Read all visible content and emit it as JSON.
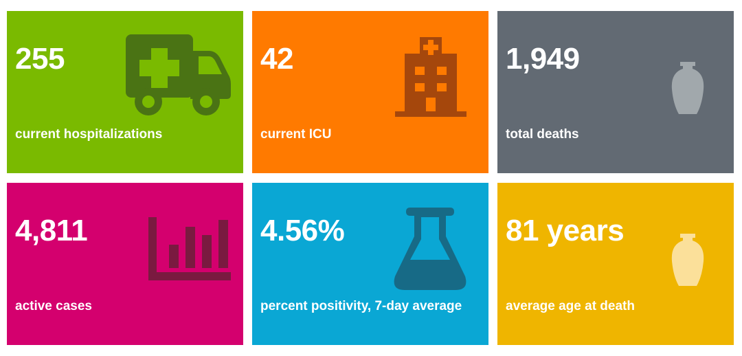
{
  "colors": {
    "hospitalizations": "#7aba00",
    "icu": "#ff7a00",
    "deaths": "#626a73",
    "active_cases": "#d4006e",
    "positivity": "#0aa7d4",
    "average_age": "#efb500"
  },
  "tiles": [
    {
      "value": "255",
      "label": "current hospitalizations",
      "icon": "ambulance-icon"
    },
    {
      "value": "42",
      "label": "current ICU",
      "icon": "hospital-building-icon"
    },
    {
      "value": "1,949",
      "label": "total deaths",
      "icon": "urn-icon"
    },
    {
      "value": "4,811",
      "label": "active cases",
      "icon": "bar-chart-icon"
    },
    {
      "value": "4.56%",
      "label": "percent positivity, 7-day average",
      "icon": "flask-icon"
    },
    {
      "value": "81 years",
      "label": "average age at death",
      "icon": "urn-icon"
    }
  ]
}
